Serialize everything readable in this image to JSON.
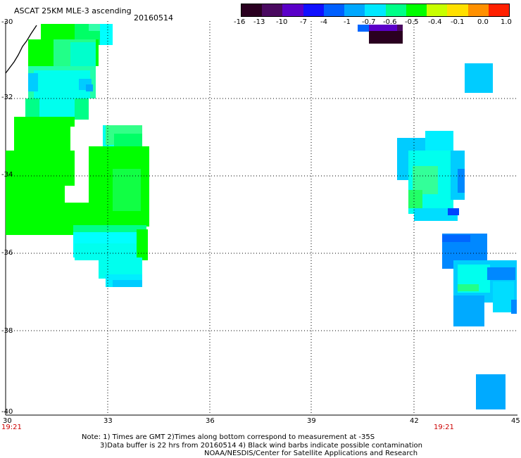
{
  "header": {
    "title": "ASCAT 25KM MLE-3 ascending",
    "date": "20160514"
  },
  "colorbar": {
    "labels": [
      "-16",
      "-13",
      "-10",
      "-7",
      "-4",
      "-1",
      "-0.7",
      "-0.6",
      "-0.5",
      "-0.4",
      "-0.1",
      "0.0",
      "1.0"
    ],
    "colors": [
      "#2a0020",
      "#4a0a60",
      "#5a00c8",
      "#1010ff",
      "#0060ff",
      "#00a8ff",
      "#00e8ff",
      "#00ff88",
      "#00ff00",
      "#c8ff00",
      "#ffe000",
      "#ff9000",
      "#ff2000"
    ]
  },
  "map": {
    "lat_labels": [
      "-30",
      "-32",
      "-34",
      "-36",
      "-38",
      "-40"
    ],
    "lon_labels": [
      "30",
      "33",
      "36",
      "39",
      "42",
      "45"
    ],
    "time_labels": [
      "19:21",
      "19:21"
    ],
    "colors": {
      "green": "#00ff00",
      "lightgreen": "#33ff66",
      "cyan": "#00ffff",
      "lightcyan": "#22eeff",
      "skyblue": "#00ccff",
      "blue": "#0066ff",
      "darkpurple": "#2a0020"
    }
  },
  "notes": {
    "line1": "Note: 1) Times are GMT 2)Times along bottom correspond to measurement at -35S",
    "line2": "3)Data buffer is 22 hrs from 20160514 4) Black wind barbs indicate possible contamination",
    "line3": "NOAA/NESDIS/Center for Satellite Applications and Research"
  }
}
